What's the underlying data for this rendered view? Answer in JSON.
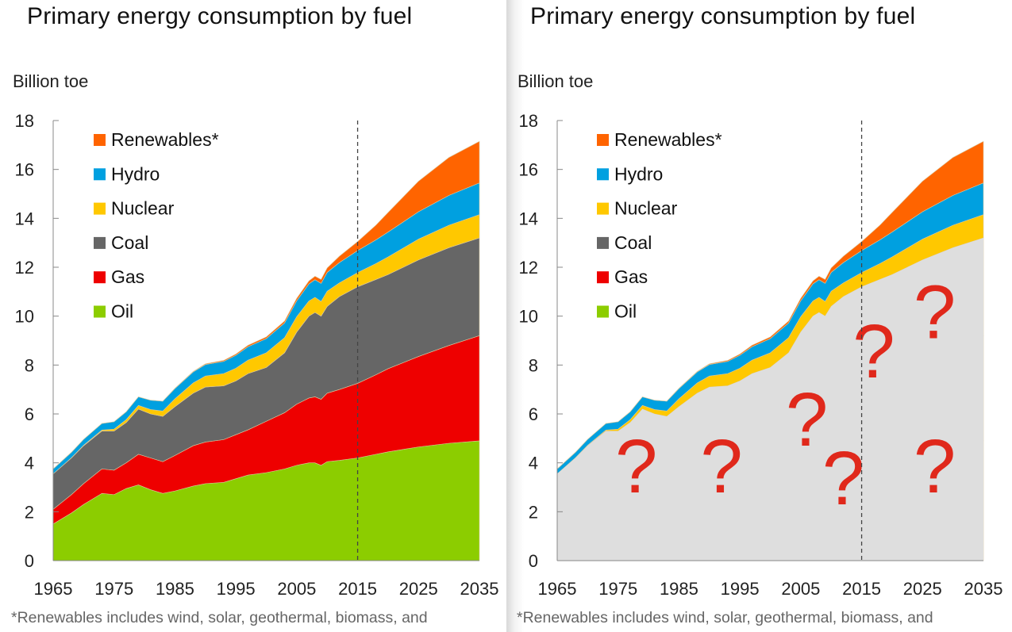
{
  "panels": [
    {
      "title": "Primary energy consumption by fuel",
      "unit_label": "Billion toe",
      "footnote": "*Renewables includes wind, solar, geothermal, biomass, and",
      "variant": "full"
    },
    {
      "title": "Primary energy consumption by fuel",
      "unit_label": "Billion toe",
      "footnote": "*Renewables includes wind, solar, geothermal, biomass, and",
      "variant": "masked",
      "mask_color": "#dedede",
      "mask_symbol": "?",
      "mask_symbol_color": "#e0281b",
      "mask_symbol_count": 7
    }
  ],
  "chart_data": [
    {
      "type": "area",
      "stacked": true,
      "title": "Primary energy consumption by fuel",
      "xlabel": "",
      "ylabel": "Billion toe",
      "xlim": [
        1965,
        2035
      ],
      "ylim": [
        0,
        18
      ],
      "x_ticks": [
        "1965",
        "1975",
        "1985",
        "1995",
        "2005",
        "2015",
        "2025",
        "2035"
      ],
      "y_ticks": [
        "0",
        "2",
        "4",
        "6",
        "8",
        "10",
        "12",
        "14",
        "16",
        "18"
      ],
      "grid": false,
      "legend_position": "top-left",
      "projection_divider_year": 2015,
      "x": [
        1965,
        1968,
        1970,
        1973,
        1975,
        1977,
        1979,
        1981,
        1983,
        1985,
        1988,
        1990,
        1993,
        1995,
        1997,
        2000,
        2003,
        2005,
        2007,
        2008,
        2009,
        2010,
        2012,
        2015,
        2018,
        2020,
        2025,
        2030,
        2035
      ],
      "series_cumulative_note": "values are per-fuel amounts (not cumulative)",
      "series": [
        {
          "name": "Oil",
          "color": "#8ccd00",
          "values": [
            1.5,
            1.95,
            2.3,
            2.75,
            2.7,
            2.95,
            3.1,
            2.9,
            2.75,
            2.85,
            3.05,
            3.15,
            3.2,
            3.35,
            3.5,
            3.6,
            3.75,
            3.9,
            4.0,
            4.0,
            3.9,
            4.05,
            4.1,
            4.2,
            4.35,
            4.45,
            4.65,
            4.8,
            4.9
          ]
        },
        {
          "name": "Gas",
          "color": "#ee0000",
          "values": [
            0.6,
            0.75,
            0.85,
            1.0,
            1.0,
            1.05,
            1.25,
            1.3,
            1.3,
            1.45,
            1.65,
            1.7,
            1.75,
            1.8,
            1.85,
            2.1,
            2.3,
            2.5,
            2.65,
            2.7,
            2.7,
            2.8,
            2.9,
            3.05,
            3.25,
            3.4,
            3.7,
            4.0,
            4.3
          ]
        },
        {
          "name": "Coal",
          "color": "#666666",
          "values": [
            1.45,
            1.5,
            1.55,
            1.55,
            1.6,
            1.65,
            1.85,
            1.8,
            1.85,
            2.0,
            2.15,
            2.25,
            2.2,
            2.2,
            2.3,
            2.2,
            2.45,
            2.95,
            3.35,
            3.45,
            3.4,
            3.55,
            3.8,
            3.95,
            3.9,
            3.85,
            3.95,
            4.0,
            4.0
          ]
        },
        {
          "name": "Nuclear",
          "color": "#ffc800",
          "values": [
            0.0,
            0.01,
            0.02,
            0.04,
            0.08,
            0.12,
            0.15,
            0.18,
            0.22,
            0.32,
            0.42,
            0.45,
            0.5,
            0.52,
            0.55,
            0.6,
            0.62,
            0.63,
            0.62,
            0.62,
            0.6,
            0.62,
            0.56,
            0.58,
            0.65,
            0.72,
            0.85,
            0.92,
            0.95
          ]
        },
        {
          "name": "Hydro",
          "color": "#00a0e0",
          "values": [
            0.2,
            0.22,
            0.24,
            0.27,
            0.3,
            0.32,
            0.35,
            0.38,
            0.4,
            0.42,
            0.45,
            0.47,
            0.5,
            0.53,
            0.55,
            0.58,
            0.6,
            0.65,
            0.7,
            0.72,
            0.74,
            0.77,
            0.83,
            0.9,
            0.97,
            1.02,
            1.12,
            1.22,
            1.3
          ]
        },
        {
          "name": "Renewables*",
          "color": "#ff6400",
          "values": [
            0.0,
            0.0,
            0.0,
            0.0,
            0.0,
            0.0,
            0.0,
            0.0,
            0.0,
            0.01,
            0.02,
            0.03,
            0.04,
            0.05,
            0.06,
            0.07,
            0.08,
            0.1,
            0.12,
            0.14,
            0.16,
            0.18,
            0.26,
            0.37,
            0.6,
            0.8,
            1.25,
            1.55,
            1.7
          ]
        }
      ]
    },
    {
      "type": "area",
      "stacked": true,
      "title": "Primary energy consumption by fuel",
      "xlabel": "",
      "ylabel": "Billion toe",
      "xlim": [
        1965,
        2035
      ],
      "ylim": [
        0,
        18
      ],
      "x_ticks": [
        "1965",
        "1975",
        "1985",
        "1995",
        "2005",
        "2015",
        "2025",
        "2035"
      ],
      "y_ticks": [
        "0",
        "2",
        "4",
        "6",
        "8",
        "10",
        "12",
        "14",
        "16",
        "18"
      ],
      "grid": false,
      "legend_position": "top-left",
      "projection_divider_year": 2015,
      "note": "Oil, Gas and Coal layers are masked by a grey block with red question marks",
      "masked_series": [
        "Oil",
        "Gas",
        "Coal"
      ],
      "visible_series": [
        "Nuclear",
        "Hydro",
        "Renewables*"
      ]
    }
  ]
}
